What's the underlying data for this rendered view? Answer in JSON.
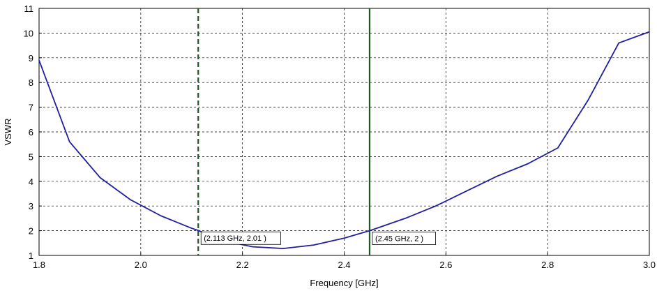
{
  "chart_data": {
    "type": "line",
    "title": "",
    "xlabel": "Frequency [GHz]",
    "ylabel": "VSWR",
    "xlim": [
      1.8,
      3.0
    ],
    "ylim": [
      1,
      11
    ],
    "x_ticks": [
      "1.8",
      "2.0",
      "2.2",
      "2.4",
      "2.6",
      "2.8",
      "3.0"
    ],
    "y_ticks": [
      "1",
      "2",
      "3",
      "4",
      "5",
      "6",
      "7",
      "8",
      "9",
      "10",
      "11"
    ],
    "grid": true,
    "series": [
      {
        "color": "#1f1fa0",
        "x": [
          1.8,
          1.86,
          1.92,
          1.98,
          2.04,
          2.1,
          2.113,
          2.16,
          2.22,
          2.28,
          2.34,
          2.4,
          2.45,
          2.52,
          2.58,
          2.64,
          2.7,
          2.76,
          2.82,
          2.88,
          2.94,
          3.0
        ],
        "y": [
          8.9,
          5.6,
          4.15,
          3.25,
          2.6,
          2.1,
          2.01,
          1.6,
          1.35,
          1.28,
          1.42,
          1.7,
          2.0,
          2.5,
          3.0,
          3.6,
          4.2,
          4.7,
          5.35,
          7.3,
          9.6,
          10.05
        ]
      }
    ],
    "markers": [
      {
        "x": 2.113,
        "style": "dashed",
        "color": "#1e5a1e",
        "label": "(2.113 GHz, 2.01 )",
        "y": 2.01
      },
      {
        "x": 2.45,
        "style": "solid",
        "color": "#1e5a1e",
        "label": "(2.45 GHz, 2 )",
        "y": 2.0
      }
    ]
  }
}
